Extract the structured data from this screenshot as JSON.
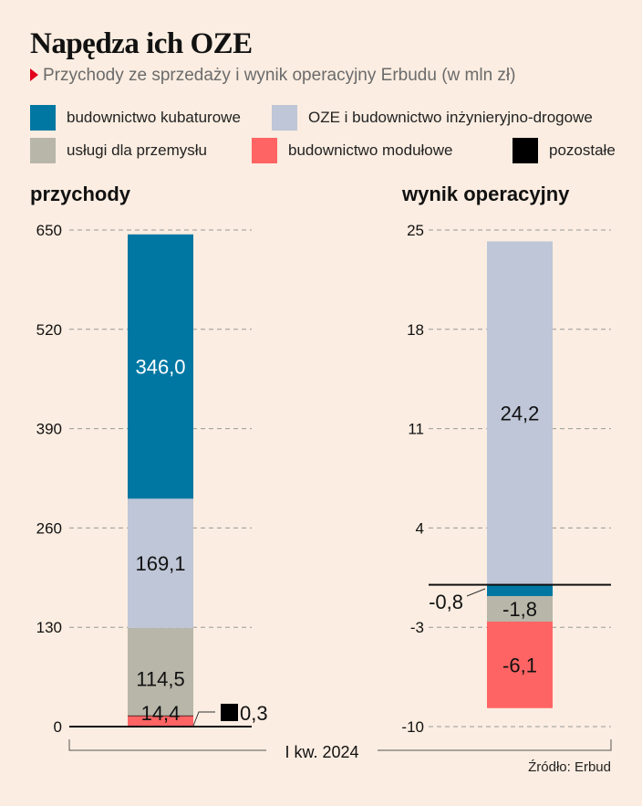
{
  "header": {
    "title": "Napędza ich OZE",
    "subtitle": "Przychody ze sprzedaży i wynik operacyjny Erbudu (w mln zł)"
  },
  "legend": [
    {
      "label": "budownictwo kubaturowe",
      "color": "#0077a3"
    },
    {
      "label": "OZE i budownictwo inżynieryjno-drogowe",
      "color": "#bec6d7"
    },
    {
      "label": "usługi dla przemysłu",
      "color": "#b7b6a9"
    },
    {
      "label": "budownictwo modułowe",
      "color": "#ff6464"
    },
    {
      "label": "pozostałe",
      "color": "#000000"
    }
  ],
  "source": "Źródło: Erbud",
  "chart_data": [
    {
      "type": "bar",
      "stacked": true,
      "title": "przychody",
      "categories": [
        "I kw. 2024"
      ],
      "ylim": [
        0,
        650
      ],
      "yticks": [
        0,
        130,
        260,
        390,
        520,
        650
      ],
      "grid": true,
      "series": [
        {
          "name": "budownictwo modułowe",
          "values": [
            14.4
          ],
          "label": "14,4"
        },
        {
          "name": "pozostałe",
          "values": [
            0.3
          ],
          "label": "0,3"
        },
        {
          "name": "usługi dla przemysłu",
          "values": [
            114.5
          ],
          "label": "114,5"
        },
        {
          "name": "OZE i budownictwo inżynieryjno-drogowe",
          "values": [
            169.1
          ],
          "label": "169,1"
        },
        {
          "name": "budownictwo kubaturowe",
          "values": [
            346.0
          ],
          "label": "346,0"
        }
      ]
    },
    {
      "type": "bar",
      "stacked": true,
      "title": "wynik operacyjny",
      "categories": [
        "I kw. 2024"
      ],
      "ylim": [
        -10,
        25
      ],
      "yticks": [
        -10,
        -3,
        4,
        11,
        18,
        25
      ],
      "grid": true,
      "series": [
        {
          "name": "OZE i budownictwo inżynieryjno-drogowe",
          "values": [
            24.2
          ],
          "label": "24,2"
        },
        {
          "name": "budownictwo kubaturowe",
          "values": [
            -0.8
          ],
          "label": "-0,8"
        },
        {
          "name": "usługi dla przemysłu",
          "values": [
            -1.8
          ],
          "label": "-1,8"
        },
        {
          "name": "budownictwo modułowe",
          "values": [
            -6.1
          ],
          "label": "-6,1"
        }
      ]
    }
  ],
  "xaxis_label": "I kw. 2024"
}
